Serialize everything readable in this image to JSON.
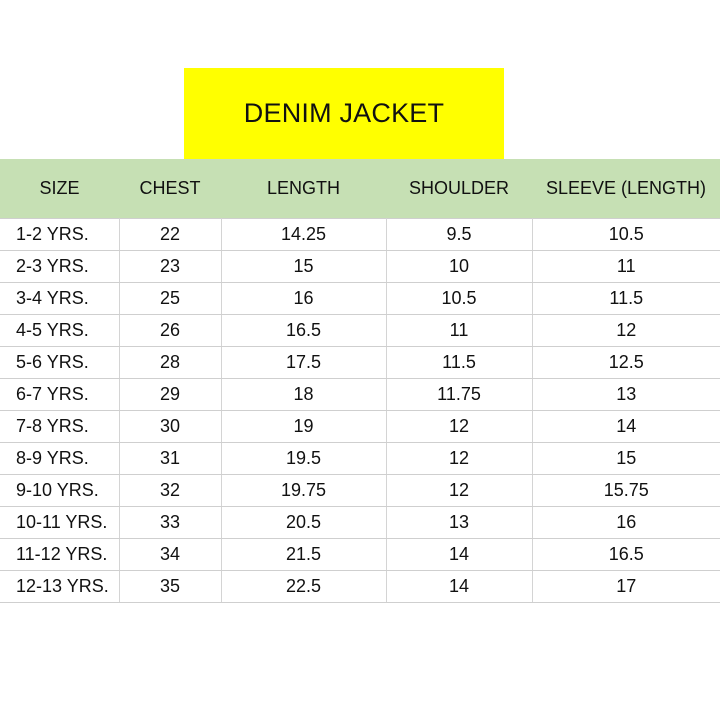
{
  "title": "DENIM JACKET",
  "colors": {
    "title_bg": "#ffff00",
    "header_bg": "#c6e0b4",
    "text": "#111111",
    "grid": "#cfcfcf"
  },
  "table": {
    "headers": [
      "SIZE",
      "CHEST",
      "LENGTH",
      "SHOULDER",
      "SLEEVE (LENGTH)"
    ],
    "rows": [
      [
        "1-2 YRS.",
        "22",
        "14.25",
        "9.5",
        "10.5"
      ],
      [
        "2-3 YRS.",
        "23",
        "15",
        "10",
        "11"
      ],
      [
        "3-4 YRS.",
        "25",
        "16",
        "10.5",
        "11.5"
      ],
      [
        "4-5 YRS.",
        "26",
        "16.5",
        "11",
        "12"
      ],
      [
        "5-6 YRS.",
        "28",
        "17.5",
        "11.5",
        "12.5"
      ],
      [
        "6-7 YRS.",
        "29",
        "18",
        "11.75",
        "13"
      ],
      [
        "7-8 YRS.",
        "30",
        "19",
        "12",
        "14"
      ],
      [
        "8-9 YRS.",
        "31",
        "19.5",
        "12",
        "15"
      ],
      [
        "9-10 YRS.",
        "32",
        "19.75",
        "12",
        "15.75"
      ],
      [
        "10-11 YRS.",
        "33",
        "20.5",
        "13",
        "16"
      ],
      [
        "11-12 YRS.",
        "34",
        "21.5",
        "14",
        "16.5"
      ],
      [
        "12-13 YRS.",
        "35",
        "22.5",
        "14",
        "17"
      ]
    ]
  }
}
